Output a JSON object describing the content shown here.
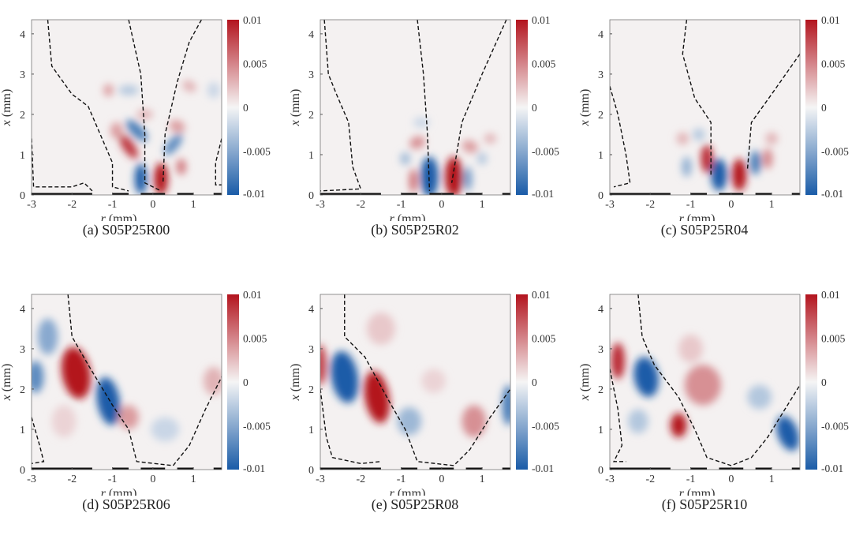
{
  "figure": {
    "colorbar": {
      "ticks": [
        0.01,
        0.005,
        0,
        -0.005,
        -0.01
      ],
      "tick_labels": [
        "0.01",
        "0.005",
        "0",
        "-0.005",
        "-0.01"
      ],
      "range": [
        -0.01,
        0.01
      ],
      "colormap": [
        "#1a5ca8",
        "#f5f5f5",
        "#b3141e"
      ]
    }
  },
  "chart_data": [
    {
      "type": "heatmap",
      "caption": "(a) S05P25R00",
      "xlabel": "r (mm)",
      "ylabel": "x (mm)",
      "xlim": [
        -3,
        1.7
      ],
      "ylim": [
        0,
        4.35
      ],
      "xticks": [
        "-3",
        "-2",
        "-1",
        "0",
        "1"
      ],
      "yticks": [
        "0",
        "1",
        "2",
        "3",
        "4"
      ],
      "features": [
        [
          0.2,
          0.4,
          1,
          0.17,
          0.4,
          0
        ],
        [
          -0.3,
          0.4,
          -1,
          0.15,
          0.38,
          0
        ],
        [
          -0.6,
          1.2,
          0.85,
          0.14,
          0.35,
          -35
        ],
        [
          -0.4,
          1.6,
          -0.8,
          0.14,
          0.35,
          -45
        ],
        [
          0.5,
          1.25,
          -0.7,
          0.13,
          0.32,
          40
        ],
        [
          0.7,
          0.7,
          0.55,
          0.12,
          0.2,
          0
        ],
        [
          -0.9,
          1.6,
          0.4,
          0.15,
          0.2,
          0
        ],
        [
          0.6,
          1.7,
          0.4,
          0.2,
          0.15,
          20
        ],
        [
          -0.6,
          2.6,
          -0.3,
          0.25,
          0.12,
          0
        ],
        [
          -1.1,
          2.6,
          0.4,
          0.12,
          0.15,
          0
        ],
        [
          0.9,
          2.7,
          0.3,
          0.18,
          0.13,
          30
        ],
        [
          1.5,
          2.6,
          -0.2,
          0.15,
          0.2,
          0
        ],
        [
          -0.2,
          2.0,
          0.3,
          0.2,
          0.12,
          0
        ]
      ],
      "contours": [
        [
          [
            -2.6,
            4.35
          ],
          [
            -2.5,
            3.2
          ],
          [
            -2.0,
            2.5
          ],
          [
            -1.6,
            2.2
          ],
          [
            -1.3,
            1.5
          ],
          [
            -1.0,
            0.8
          ],
          [
            -1.0,
            0.2
          ],
          [
            -0.6,
            0.1
          ]
        ],
        [
          [
            -0.6,
            4.35
          ],
          [
            -0.3,
            3.0
          ],
          [
            -0.2,
            1.5
          ],
          [
            -0.2,
            0.3
          ],
          [
            0.2,
            0.1
          ]
        ],
        [
          [
            1.2,
            4.35
          ],
          [
            0.9,
            3.8
          ],
          [
            0.6,
            2.8
          ],
          [
            0.3,
            1.5
          ],
          [
            0.25,
            0.3
          ]
        ],
        [
          [
            -3,
            1.4
          ],
          [
            -2.95,
            0.2
          ],
          [
            -2,
            0.2
          ],
          [
            -1.7,
            0.3
          ],
          [
            -1.5,
            0.1
          ]
        ],
        [
          [
            1.7,
            1.4
          ],
          [
            1.55,
            0.8
          ],
          [
            1.55,
            0.25
          ],
          [
            1.7,
            0.25
          ]
        ]
      ]
    },
    {
      "type": "heatmap",
      "caption": "(b) S05P25R02",
      "xlabel": "r (mm)",
      "ylabel": "x (mm)",
      "xlim": [
        -3,
        1.7
      ],
      "ylim": [
        0,
        4.35
      ],
      "xticks": [
        "-3",
        "-2",
        "-1",
        "0",
        "1"
      ],
      "yticks": [
        "0",
        "1",
        "2",
        "3",
        "4"
      ],
      "features": [
        [
          -0.3,
          0.45,
          -1,
          0.22,
          0.5,
          0
        ],
        [
          0.3,
          0.45,
          1,
          0.22,
          0.5,
          0
        ],
        [
          0.65,
          0.4,
          -0.6,
          0.1,
          0.3,
          0
        ],
        [
          -0.7,
          0.35,
          0.6,
          0.1,
          0.3,
          0
        ],
        [
          -0.6,
          1.3,
          0.45,
          0.2,
          0.15,
          -20
        ],
        [
          0.7,
          1.2,
          0.4,
          0.2,
          0.15,
          20
        ],
        [
          -0.9,
          0.9,
          -0.4,
          0.12,
          0.15,
          0
        ],
        [
          1.0,
          0.9,
          -0.3,
          0.12,
          0.15,
          0
        ],
        [
          1.2,
          1.4,
          0.3,
          0.15,
          0.12,
          0
        ],
        [
          -0.5,
          1.8,
          -0.2,
          0.2,
          0.12,
          0
        ]
      ],
      "contours": [
        [
          [
            -2.9,
            4.35
          ],
          [
            -2.8,
            3
          ],
          [
            -2.6,
            2.5
          ],
          [
            -2.3,
            1.8
          ],
          [
            -2.2,
            0.7
          ],
          [
            -2.0,
            0.15
          ],
          [
            -3,
            0.1
          ]
        ],
        [
          [
            -0.6,
            4.35
          ],
          [
            -0.45,
            3
          ],
          [
            -0.35,
            1.5
          ],
          [
            -0.3,
            0.1
          ]
        ],
        [
          [
            1.6,
            4.35
          ],
          [
            1.0,
            3
          ],
          [
            0.5,
            1.8
          ],
          [
            0.25,
            0.3
          ]
        ]
      ]
    },
    {
      "type": "heatmap",
      "caption": "(c) S05P25R04",
      "xlabel": "r (mm)",
      "ylabel": "x (mm)",
      "xlim": [
        -3,
        1.7
      ],
      "ylim": [
        0,
        4.35
      ],
      "xticks": [
        "-3",
        "-2",
        "-1",
        "0",
        "1"
      ],
      "yticks": [
        "0",
        "1",
        "2",
        "3",
        "4"
      ],
      "features": [
        [
          -0.3,
          0.5,
          -1,
          0.2,
          0.4,
          0
        ],
        [
          0.2,
          0.5,
          1,
          0.18,
          0.4,
          0
        ],
        [
          -0.6,
          0.9,
          0.9,
          0.15,
          0.35,
          0
        ],
        [
          0.6,
          0.8,
          -0.8,
          0.13,
          0.3,
          0
        ],
        [
          0.9,
          0.9,
          0.5,
          0.12,
          0.25,
          0
        ],
        [
          -1.1,
          0.7,
          -0.45,
          0.12,
          0.25,
          0
        ],
        [
          -1.2,
          1.4,
          0.3,
          0.15,
          0.15,
          0
        ],
        [
          1.0,
          1.4,
          0.3,
          0.15,
          0.15,
          0
        ],
        [
          -0.8,
          1.5,
          -0.3,
          0.15,
          0.15,
          0
        ]
      ],
      "contours": [
        [
          [
            -3,
            2.7
          ],
          [
            -2.8,
            2.0
          ],
          [
            -2.6,
            1.0
          ],
          [
            -2.5,
            0.3
          ],
          [
            -2.9,
            0.2
          ]
        ],
        [
          [
            -1.1,
            4.35
          ],
          [
            -1.2,
            3.5
          ],
          [
            -0.9,
            2.4
          ],
          [
            -0.5,
            1.8
          ],
          [
            -0.5,
            0.5
          ]
        ],
        [
          [
            1.7,
            3.5
          ],
          [
            1.0,
            2.5
          ],
          [
            0.5,
            1.8
          ],
          [
            0.4,
            0.6
          ]
        ]
      ]
    },
    {
      "type": "heatmap",
      "caption": "(d) S05P25R06",
      "xlabel": "r (mm)",
      "ylabel": "x (mm)",
      "xlim": [
        -3,
        1.7
      ],
      "ylim": [
        0,
        4.35
      ],
      "xticks": [
        "-3",
        "-2",
        "-1",
        "0",
        "1"
      ],
      "yticks": [
        "0",
        "1",
        "2",
        "3",
        "4"
      ],
      "features": [
        [
          -1.9,
          2.4,
          1,
          0.35,
          0.65,
          -10
        ],
        [
          -1.1,
          1.7,
          -1,
          0.28,
          0.6,
          -10
        ],
        [
          -2.6,
          3.3,
          -0.5,
          0.25,
          0.45,
          0
        ],
        [
          -2.9,
          2.3,
          -0.7,
          0.2,
          0.4,
          0
        ],
        [
          -0.6,
          1.3,
          0.4,
          0.25,
          0.3,
          0
        ],
        [
          1.5,
          2.2,
          0.3,
          0.25,
          0.35,
          0
        ],
        [
          0.3,
          1.0,
          -0.2,
          0.35,
          0.3,
          0
        ],
        [
          -2.2,
          1.2,
          0.15,
          0.3,
          0.4,
          0
        ]
      ],
      "contours": [
        [
          [
            -2.1,
            4.35
          ],
          [
            -2.0,
            3.3
          ],
          [
            -1.6,
            2.6
          ],
          [
            -1.0,
            1.6
          ],
          [
            -0.6,
            1.0
          ],
          [
            -0.4,
            0.2
          ],
          [
            0.5,
            0.1
          ],
          [
            0.9,
            0.6
          ],
          [
            1.3,
            1.5
          ],
          [
            1.7,
            2.3
          ]
        ],
        [
          [
            -3,
            1.3
          ],
          [
            -2.8,
            0.6
          ],
          [
            -2.7,
            0.2
          ],
          [
            -3,
            0.15
          ]
        ]
      ]
    },
    {
      "type": "heatmap",
      "caption": "(e) S05P25R08",
      "xlabel": "r (mm)",
      "ylabel": "x (mm)",
      "xlim": [
        -3,
        1.7
      ],
      "ylim": [
        0,
        4.35
      ],
      "xticks": [
        "-3",
        "-2",
        "-1",
        "0",
        "1"
      ],
      "yticks": [
        "0",
        "1",
        "2",
        "3",
        "4"
      ],
      "features": [
        [
          -2.4,
          2.3,
          -1,
          0.33,
          0.65,
          -10
        ],
        [
          -1.6,
          1.8,
          1,
          0.3,
          0.65,
          -10
        ],
        [
          -3,
          2.6,
          0.8,
          0.15,
          0.5,
          0
        ],
        [
          1.65,
          1.6,
          -0.8,
          0.15,
          0.5,
          0
        ],
        [
          0.8,
          1.2,
          0.45,
          0.3,
          0.4,
          0
        ],
        [
          -0.8,
          1.2,
          -0.4,
          0.3,
          0.35,
          0
        ],
        [
          -1.5,
          3.5,
          0.2,
          0.35,
          0.4,
          0
        ],
        [
          -0.2,
          2.2,
          0.15,
          0.3,
          0.3,
          0
        ]
      ],
      "contours": [
        [
          [
            -2.4,
            4.35
          ],
          [
            -2.4,
            3.3
          ],
          [
            -1.9,
            2.8
          ],
          [
            -1.3,
            1.7
          ],
          [
            -0.9,
            1.0
          ],
          [
            -0.6,
            0.2
          ],
          [
            0.3,
            0.1
          ],
          [
            0.7,
            0.5
          ],
          [
            1.2,
            1.3
          ],
          [
            1.7,
            2.0
          ]
        ],
        [
          [
            -3,
            2.0
          ],
          [
            -2.85,
            0.8
          ],
          [
            -2.7,
            0.3
          ],
          [
            -2.0,
            0.15
          ],
          [
            -1.5,
            0.2
          ]
        ]
      ]
    },
    {
      "type": "heatmap",
      "caption": "(f) S05P25R10",
      "xlabel": "r (mm)",
      "ylabel": "x (mm)",
      "xlim": [
        -3,
        1.7
      ],
      "ylim": [
        0,
        4.35
      ],
      "xticks": [
        "-3",
        "-2",
        "-1",
        "0",
        "1"
      ],
      "yticks": [
        "0",
        "1",
        "2",
        "3",
        "4"
      ],
      "features": [
        [
          -2.1,
          2.3,
          -1,
          0.3,
          0.5,
          -10
        ],
        [
          -2.8,
          2.7,
          0.9,
          0.17,
          0.45,
          0
        ],
        [
          -1.3,
          1.1,
          1,
          0.2,
          0.3,
          0
        ],
        [
          1.4,
          0.9,
          -1,
          0.25,
          0.45,
          -20
        ],
        [
          -0.7,
          2.1,
          0.45,
          0.45,
          0.5,
          0
        ],
        [
          -2.3,
          1.2,
          -0.3,
          0.25,
          0.3,
          0
        ],
        [
          0.7,
          1.8,
          -0.3,
          0.3,
          0.3,
          0
        ],
        [
          -1.0,
          3.0,
          0.2,
          0.3,
          0.35,
          0
        ]
      ],
      "contours": [
        [
          [
            -2.3,
            4.35
          ],
          [
            -2.2,
            3.3
          ],
          [
            -1.9,
            2.6
          ],
          [
            -1.3,
            1.8
          ],
          [
            -0.9,
            1.0
          ],
          [
            -0.6,
            0.3
          ],
          [
            0,
            0.1
          ],
          [
            0.5,
            0.3
          ],
          [
            0.9,
            0.8
          ],
          [
            1.7,
            2.1
          ]
        ],
        [
          [
            -3,
            2.5
          ],
          [
            -2.8,
            1.5
          ],
          [
            -2.7,
            0.6
          ],
          [
            -2.9,
            0.2
          ],
          [
            -2.6,
            0.2
          ]
        ]
      ]
    }
  ]
}
